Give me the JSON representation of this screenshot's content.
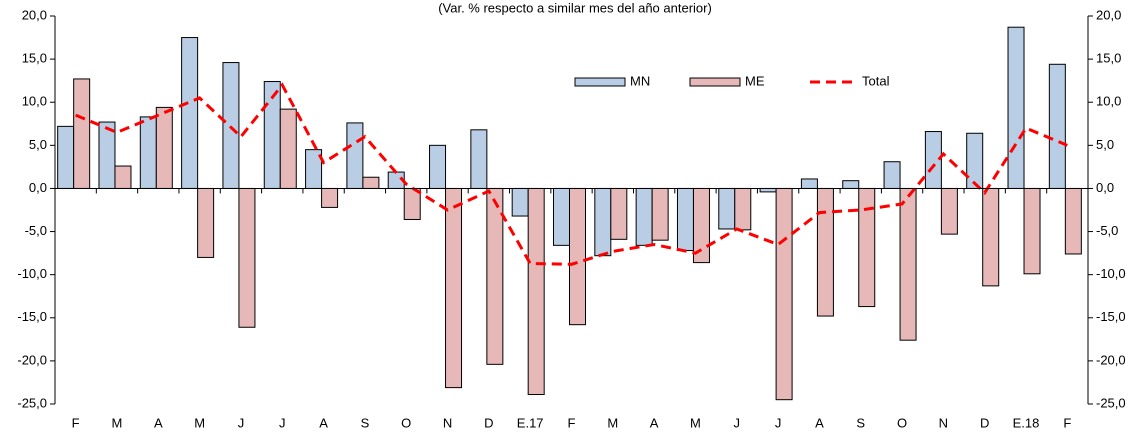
{
  "chart_data": {
    "type": "bar",
    "subtitle": "(Var. % respecto a similar mes del año anterior)",
    "categories": [
      "F",
      "M",
      "A",
      "M",
      "J",
      "J",
      "A",
      "S",
      "O",
      "N",
      "D",
      "E.17",
      "F",
      "M",
      "A",
      "M",
      "J",
      "J",
      "A",
      "S",
      "O",
      "N",
      "D",
      "E.18",
      "F"
    ],
    "series": [
      {
        "name": "MN",
        "type": "bar",
        "color": "#b9cde5",
        "values": [
          7.2,
          7.7,
          8.3,
          17.5,
          14.6,
          12.4,
          4.5,
          7.6,
          1.9,
          5.0,
          6.8,
          -3.2,
          -6.6,
          -7.8,
          -6.6,
          -7.2,
          -4.7,
          -0.4,
          1.1,
          0.9,
          3.1,
          6.6,
          6.4,
          18.7,
          14.4
        ]
      },
      {
        "name": "ME",
        "type": "bar",
        "color": "#e6b9b8",
        "values": [
          12.7,
          2.6,
          9.4,
          -8.0,
          -16.1,
          9.2,
          -2.2,
          1.3,
          -3.6,
          -23.1,
          -20.4,
          -23.9,
          -15.8,
          -5.9,
          -6.0,
          -8.6,
          -4.8,
          -24.5,
          -14.8,
          -13.7,
          -17.6,
          -5.3,
          -11.3,
          -9.9,
          -7.6
        ]
      },
      {
        "name": "Total",
        "type": "line",
        "color": "#ff0000",
        "values": [
          8.5,
          6.5,
          8.5,
          10.5,
          6.0,
          12.0,
          3.0,
          6.0,
          0.5,
          -2.5,
          -0.3,
          -8.7,
          -8.8,
          -7.3,
          -6.5,
          -7.5,
          -4.7,
          -6.5,
          -2.8,
          -2.5,
          -1.8,
          4.0,
          -0.5,
          7.0,
          5.0
        ]
      }
    ],
    "ylim": [
      -25,
      20
    ],
    "yticks": [
      {
        "value": -25,
        "label": "-25,0"
      },
      {
        "value": -20,
        "label": "-20,0"
      },
      {
        "value": -15,
        "label": "-15,0"
      },
      {
        "value": -10,
        "label": "-10,0"
      },
      {
        "value": -5,
        "label": "-5,0"
      },
      {
        "value": 0,
        "label": "0,0"
      },
      {
        "value": 5,
        "label": "5,0"
      },
      {
        "value": 10,
        "label": "10,0"
      },
      {
        "value": 15,
        "label": "15,0"
      },
      {
        "value": 20,
        "label": "20,0"
      }
    ],
    "y2lim": [
      -25,
      20
    ],
    "y2ticks": [
      {
        "value": -25,
        "label": "-25,0"
      },
      {
        "value": -20,
        "label": "-20,0"
      },
      {
        "value": -15,
        "label": "-15,0"
      },
      {
        "value": -10,
        "label": "-10,0"
      },
      {
        "value": -5,
        "label": "-5,0"
      },
      {
        "value": 0,
        "label": "0,0"
      },
      {
        "value": 5,
        "label": "5,0"
      },
      {
        "value": 10,
        "label": "10,0"
      },
      {
        "value": 15,
        "label": "15,0"
      },
      {
        "value": 20,
        "label": "20,0"
      }
    ],
    "grid": false
  }
}
